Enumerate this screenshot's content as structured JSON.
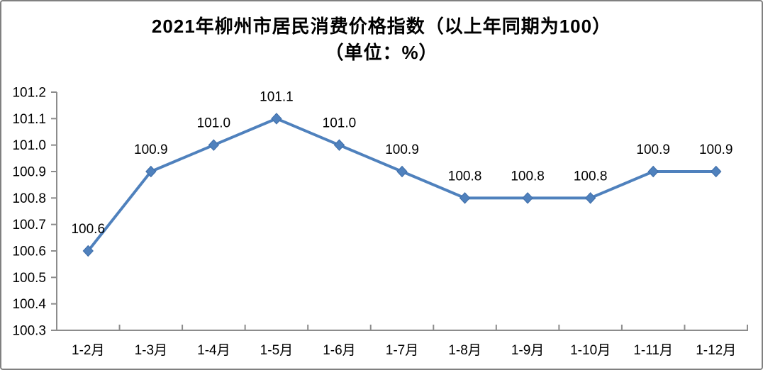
{
  "window": {
    "background": "#ffffff",
    "border_color": "#808080"
  },
  "chart_data": {
    "type": "line",
    "title": "2021年柳州市居民消费价格指数（以上年同期为100）",
    "subtitle": "（单位：%）",
    "categories": [
      "1-2月",
      "1-3月",
      "1-4月",
      "1-5月",
      "1-6月",
      "1-7月",
      "1-8月",
      "1-9月",
      "1-10月",
      "1-11月",
      "1-12月"
    ],
    "values": [
      100.6,
      100.9,
      101.0,
      101.1,
      101.0,
      100.9,
      100.8,
      100.8,
      100.8,
      100.9,
      100.9
    ],
    "data_labels": [
      "100.6",
      "100.9",
      "101.0",
      "101.1",
      "101.0",
      "100.9",
      "100.8",
      "100.8",
      "100.8",
      "100.9",
      "100.9"
    ],
    "yticks": [
      101.2,
      101.1,
      101.0,
      100.9,
      100.8,
      100.7,
      100.6,
      100.5,
      100.4,
      100.3
    ],
    "ylim": [
      100.3,
      101.2
    ],
    "xlabel": "",
    "ylabel": "",
    "grid": "off",
    "legend": "none",
    "line_color": "#4F81BD",
    "marker_edge_color": "#3E6DA8",
    "axis_color": "#8C8C8C",
    "label_color": "#000000"
  }
}
